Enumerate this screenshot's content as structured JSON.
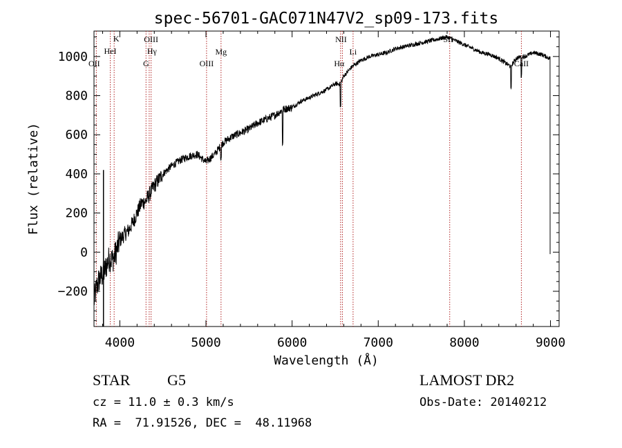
{
  "chart_data": {
    "type": "line",
    "title": "spec-56701-GAC071N47V2_sp09-173.fits",
    "xlabel": "Wavelength (Å)",
    "ylabel": "Flux (relative)",
    "xlim": [
      3700,
      9100
    ],
    "ylim": [
      -380,
      1130
    ],
    "xticks": [
      4000,
      5000,
      6000,
      7000,
      8000,
      9000
    ],
    "xtick_labels": [
      "4000",
      "5000",
      "6000",
      "7000",
      "8000",
      "9000"
    ],
    "yticks": [
      -200,
      0,
      200,
      400,
      600,
      800,
      1000
    ],
    "ytick_labels": [
      "−200",
      "0",
      "200",
      "400",
      "600",
      "800",
      "1000"
    ],
    "grid": false,
    "series": [
      {
        "x": [
          3700,
          3730,
          3760,
          3790,
          3820,
          3850,
          3880,
          3910,
          3940,
          3970,
          4000,
          4050,
          4100,
          4150,
          4200,
          4250,
          4300,
          4350,
          4400,
          4450,
          4500,
          4600,
          4700,
          4800,
          4900,
          5000,
          5100,
          5200,
          5300,
          5400,
          5500,
          5600,
          5700,
          5800,
          5900,
          6000,
          6100,
          6200,
          6300,
          6400,
          6500,
          6560,
          6600,
          6700,
          6800,
          6900,
          7000,
          7100,
          7200,
          7300,
          7400,
          7500,
          7600,
          7700,
          7800,
          7850,
          7900,
          8000,
          8100,
          8200,
          8300,
          8400,
          8500,
          8540,
          8600,
          8660,
          8700,
          8800,
          8900,
          8990,
          9000
        ],
        "y": [
          -250,
          -180,
          -140,
          -120,
          -100,
          -60,
          -30,
          -40,
          -20,
          20,
          60,
          90,
          110,
          150,
          200,
          250,
          260,
          300,
          340,
          370,
          400,
          440,
          470,
          490,
          500,
          460,
          500,
          560,
          590,
          610,
          630,
          660,
          680,
          700,
          730,
          740,
          770,
          790,
          810,
          830,
          860,
          860,
          900,
          950,
          980,
          1000,
          1010,
          1020,
          1040,
          1050,
          1060,
          1070,
          1080,
          1090,
          1100,
          1090,
          1080,
          1060,
          1040,
          1020,
          1010,
          990,
          960,
          950,
          990,
          1000,
          1000,
          1020,
          1010,
          990,
          -10
        ]
      }
    ],
    "lines": [
      {
        "label": "OII",
        "x": 3727
      },
      {
        "label": "K",
        "x": 3934
      },
      {
        "label": "HeI",
        "x": 3889
      },
      {
        "label": "G",
        "x": 4304
      },
      {
        "label": "Hγ",
        "x": 4341
      },
      {
        "label": "OIII",
        "x": 4363
      },
      {
        "label": "OIII",
        "x": 5007
      },
      {
        "label": "Mg",
        "x": 5175
      },
      {
        "label": "NII",
        "x": 6584
      },
      {
        "label": "Hα",
        "x": 6563
      },
      {
        "label": "Li",
        "x": 6708
      },
      {
        "label": "SII",
        "x": 7830
      },
      {
        "label": "CaII",
        "x": 8662
      }
    ]
  },
  "info": {
    "class": "STAR",
    "subclass": "G5",
    "survey": "LAMOST DR2",
    "redshift": "cz = 11.0 ± 0.3 km/s",
    "obs_date": "Obs-Date: 20140212",
    "radec": "RA =  71.91526, DEC =  48.11968"
  }
}
